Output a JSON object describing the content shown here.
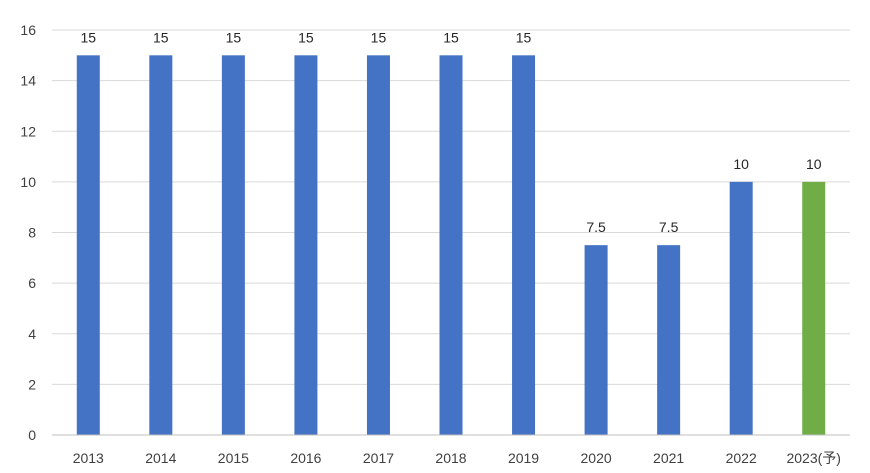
{
  "chart_data": {
    "type": "bar",
    "title": "",
    "xlabel": "",
    "ylabel": "",
    "categories": [
      "2013",
      "2014",
      "2015",
      "2016",
      "2017",
      "2018",
      "2019",
      "2020",
      "2021",
      "2022",
      "2023(予)"
    ],
    "values": [
      15,
      15,
      15,
      15,
      15,
      15,
      15,
      7.5,
      7.5,
      10,
      10
    ],
    "data_labels": [
      "15",
      "15",
      "15",
      "15",
      "15",
      "15",
      "15",
      "7.5",
      "7.5",
      "10",
      "10"
    ],
    "ylim": [
      0,
      16
    ],
    "yticks": [
      0,
      2,
      4,
      6,
      8,
      10,
      12,
      14,
      16
    ],
    "ytick_labels": [
      "0",
      "2",
      "4",
      "6",
      "8",
      "10",
      "12",
      "14",
      "16"
    ],
    "grid": true,
    "legend": "none",
    "colors": {
      "actual": "#4472c4",
      "forecast": "#70ad47"
    },
    "bar_colors": [
      "#4472c4",
      "#4472c4",
      "#4472c4",
      "#4472c4",
      "#4472c4",
      "#4472c4",
      "#4472c4",
      "#4472c4",
      "#4472c4",
      "#4472c4",
      "#70ad47"
    ]
  }
}
